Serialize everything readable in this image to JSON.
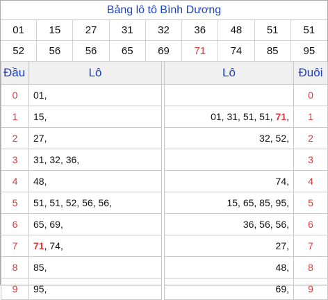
{
  "title": "Bảng lô tô Bình Dương",
  "numbers_row1": [
    "01",
    "15",
    "27",
    "31",
    "32",
    "36",
    "48",
    "51",
    "51"
  ],
  "numbers_row2": [
    "52",
    "56",
    "56",
    "65",
    "69",
    "71",
    "74",
    "85",
    "95"
  ],
  "highlight_number": "71",
  "headers": {
    "dau": "Đầu",
    "lo_left": "Lô",
    "lo_right": "Lô",
    "duoi": "Đuôi"
  },
  "rows": [
    {
      "dau": "0",
      "left": [
        "01"
      ],
      "right": [],
      "duoi": "0"
    },
    {
      "dau": "1",
      "left": [
        "15"
      ],
      "right": [
        "01",
        "31",
        "51",
        "51",
        "71"
      ],
      "duoi": "1"
    },
    {
      "dau": "2",
      "left": [
        "27"
      ],
      "right": [
        "32",
        "52"
      ],
      "duoi": "2"
    },
    {
      "dau": "3",
      "left": [
        "31",
        "32",
        "36"
      ],
      "right": [],
      "duoi": "3"
    },
    {
      "dau": "4",
      "left": [
        "48"
      ],
      "right": [
        "74"
      ],
      "duoi": "4"
    },
    {
      "dau": "5",
      "left": [
        "51",
        "51",
        "52",
        "56",
        "56"
      ],
      "right": [
        "15",
        "65",
        "85",
        "95"
      ],
      "duoi": "5"
    },
    {
      "dau": "6",
      "left": [
        "65",
        "69"
      ],
      "right": [
        "36",
        "56",
        "56"
      ],
      "duoi": "6"
    },
    {
      "dau": "7",
      "left": [
        "71",
        "74"
      ],
      "right": [
        "27"
      ],
      "duoi": "7"
    },
    {
      "dau": "8",
      "left": [
        "85"
      ],
      "right": [
        "48"
      ],
      "duoi": "8"
    },
    {
      "dau": "9",
      "left": [
        "95"
      ],
      "right": [
        "69"
      ],
      "duoi": "9"
    }
  ],
  "colors": {
    "title": "#1a3fbf",
    "accent_red": "#e0373a",
    "header_bg": "#f0f0f0"
  }
}
